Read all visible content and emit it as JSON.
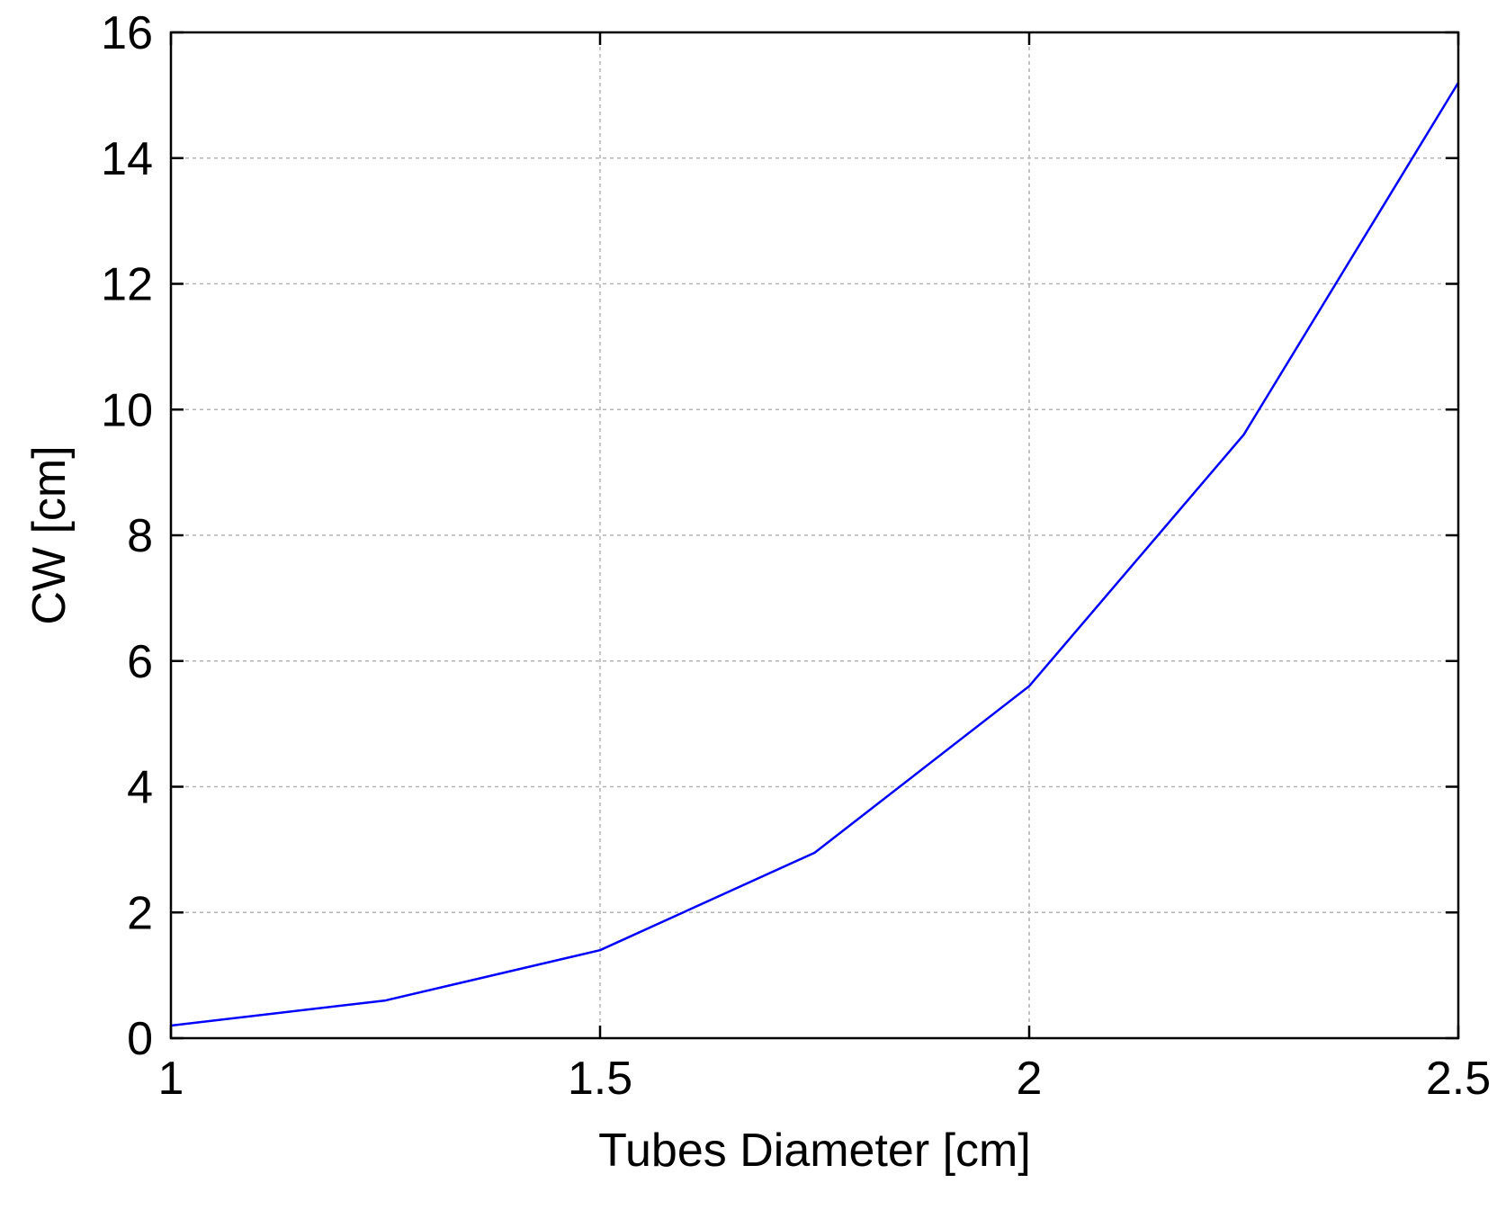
{
  "chart_data": {
    "type": "line",
    "title": "",
    "xlabel": "Tubes Diameter [cm]",
    "ylabel": "CW [cm]",
    "xlim": [
      1,
      2.5
    ],
    "ylim": [
      0,
      16
    ],
    "x_ticks": [
      1,
      1.5,
      2,
      2.5
    ],
    "x_tick_labels": [
      "1",
      "1.5",
      "2",
      "2.5"
    ],
    "y_ticks": [
      0,
      2,
      4,
      6,
      8,
      10,
      12,
      14,
      16
    ],
    "y_tick_labels": [
      "0",
      "2",
      "4",
      "6",
      "8",
      "10",
      "12",
      "14",
      "16"
    ],
    "grid": true,
    "legend": "none",
    "series": [
      {
        "color": "#0000ff",
        "x": [
          1,
          1.25,
          1.5,
          1.75,
          2,
          2.25,
          2.5
        ],
        "values": [
          0.2,
          0.6,
          1.4,
          2.95,
          5.6,
          9.6,
          15.2
        ]
      }
    ]
  }
}
